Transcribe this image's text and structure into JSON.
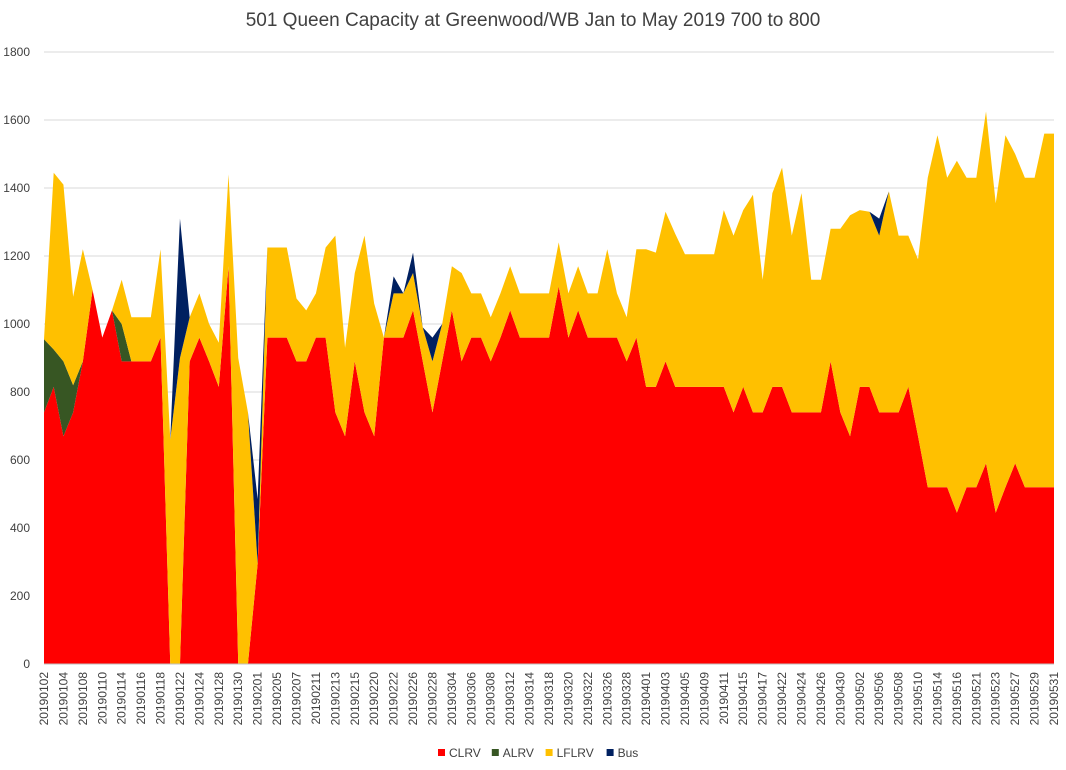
{
  "chart_data": {
    "type": "area",
    "stacked": true,
    "title": "501 Queen Capacity at Greenwood/WB Jan to May 2019 700 to 800",
    "xlabel": "",
    "ylabel": "",
    "ylim": [
      0,
      1800
    ],
    "yticks": [
      0,
      200,
      400,
      600,
      800,
      1000,
      1200,
      1400,
      1600,
      1800
    ],
    "grid": true,
    "legend": "bottom-center",
    "x": [
      "20190102",
      "20190103",
      "20190104",
      "20190107",
      "20190108",
      "20190109",
      "20190110",
      "20190111",
      "20190114",
      "20190115",
      "20190116",
      "20190117",
      "20190118",
      "20190121",
      "20190122",
      "20190123",
      "20190124",
      "20190125",
      "20190128",
      "20190129",
      "20190130",
      "20190131",
      "20190201",
      "20190204",
      "20190205",
      "20190206",
      "20190207",
      "20190208",
      "20190211",
      "20190212",
      "20190213",
      "20190214",
      "20190215",
      "20190219",
      "20190220",
      "20190221",
      "20190222",
      "20190225",
      "20190226",
      "20190227",
      "20190228",
      "20190301",
      "20190304",
      "20190305",
      "20190306",
      "20190307",
      "20190308",
      "20190311",
      "20190312",
      "20190313",
      "20190314",
      "20190315",
      "20190318",
      "20190319",
      "20190320",
      "20190321",
      "20190322",
      "20190325",
      "20190326",
      "20190327",
      "20190328",
      "20190329",
      "20190401",
      "20190402",
      "20190403",
      "20190404",
      "20190405",
      "20190408",
      "20190409",
      "20190410",
      "20190411",
      "20190412",
      "20190415",
      "20190416",
      "20190417",
      "20190418",
      "20190422",
      "20190423",
      "20190424",
      "20190425",
      "20190426",
      "20190429",
      "20190430",
      "20190501",
      "20190502",
      "20190503",
      "20190506",
      "20190507",
      "20190508",
      "20190509",
      "20190510",
      "20190513",
      "20190514",
      "20190515",
      "20190516",
      "20190517",
      "20190521",
      "20190522",
      "20190523",
      "20190524",
      "20190527",
      "20190528",
      "20190529",
      "20190530",
      "20190531"
    ],
    "xtick_labels": [
      "20190102",
      "20190104",
      "20190108",
      "20190110",
      "20190114",
      "20190116",
      "20190118",
      "20190122",
      "20190124",
      "20190128",
      "20190130",
      "20190201",
      "20190205",
      "20190207",
      "20190211",
      "20190213",
      "20190215",
      "20190220",
      "20190222",
      "20190226",
      "20190228",
      "20190304",
      "20190306",
      "20190308",
      "20190312",
      "20190314",
      "20190318",
      "20190320",
      "20190322",
      "20190326",
      "20190328",
      "20190401",
      "20190403",
      "20190405",
      "20190409",
      "20190411",
      "20190415",
      "20190417",
      "20190422",
      "20190424",
      "20190426",
      "20190430",
      "20190502",
      "20190506",
      "20190508",
      "20190510",
      "20190514",
      "20190516",
      "20190521",
      "20190523",
      "20190527",
      "20190529",
      "20190531"
    ],
    "series": [
      {
        "name": "CLRV",
        "color": "#ff0000",
        "values": [
          740,
          815,
          670,
          740,
          890,
          1100,
          960,
          1040,
          890,
          890,
          890,
          890,
          960,
          0,
          0,
          890,
          960,
          890,
          815,
          1170,
          0,
          0,
          295,
          960,
          960,
          960,
          890,
          890,
          960,
          960,
          740,
          670,
          890,
          740,
          670,
          960,
          960,
          960,
          1040,
          890,
          740,
          890,
          1040,
          890,
          960,
          960,
          890,
          960,
          1040,
          960,
          960,
          960,
          960,
          1110,
          960,
          1040,
          960,
          960,
          960,
          960,
          890,
          960,
          815,
          815,
          890,
          815,
          815,
          815,
          815,
          815,
          815,
          740,
          815,
          740,
          740,
          815,
          815,
          740,
          740,
          740,
          740,
          890,
          740,
          670,
          815,
          815,
          740,
          740,
          740,
          815,
          670,
          520,
          520,
          520,
          445,
          520,
          520,
          590,
          445,
          520,
          590,
          520,
          520,
          520,
          520
        ]
      },
      {
        "name": "ALRV",
        "color": "#375623",
        "values": [
          215,
          110,
          220,
          80,
          0,
          0,
          0,
          0,
          110,
          0,
          0,
          0,
          0,
          0,
          0,
          0,
          0,
          0,
          0,
          0,
          0,
          0,
          0,
          0,
          0,
          0,
          0,
          0,
          0,
          0,
          0,
          0,
          0,
          0,
          0,
          0,
          0,
          0,
          0,
          0,
          0,
          0,
          0,
          0,
          0,
          0,
          0,
          0,
          0,
          0,
          0,
          0,
          0,
          0,
          0,
          0,
          0,
          0,
          0,
          0,
          0,
          0,
          0,
          0,
          0,
          0,
          0,
          0,
          0,
          0,
          0,
          0,
          0,
          0,
          0,
          0,
          0,
          0,
          0,
          0,
          0,
          0,
          0,
          0,
          0,
          0,
          0,
          0,
          0,
          0,
          0,
          0,
          0,
          0,
          0,
          0,
          0,
          0,
          0,
          0,
          0,
          0,
          0,
          0,
          0
        ]
      },
      {
        "name": "LFLRV",
        "color": "#ffc000",
        "values": [
          0,
          520,
          520,
          260,
          330,
          0,
          0,
          0,
          130,
          130,
          130,
          130,
          260,
          660,
          900,
          130,
          130,
          110,
          130,
          270,
          900,
          740,
          0,
          265,
          265,
          265,
          185,
          150,
          130,
          265,
          520,
          260,
          260,
          520,
          390,
          0,
          130,
          130,
          110,
          100,
          150,
          110,
          130,
          260,
          130,
          130,
          130,
          130,
          130,
          130,
          130,
          130,
          130,
          130,
          130,
          130,
          130,
          130,
          260,
          130,
          130,
          260,
          405,
          395,
          440,
          450,
          390,
          390,
          390,
          390,
          520,
          520,
          520,
          640,
          390,
          570,
          645,
          520,
          645,
          390,
          390,
          390,
          540,
          650,
          520,
          515,
          520,
          650,
          520,
          445,
          520,
          910,
          1035,
          910,
          1035,
          910,
          910,
          1035,
          910,
          1035,
          910,
          910,
          910,
          1040,
          1040
        ]
      },
      {
        "name": "Bus",
        "color": "#002060",
        "values": [
          0,
          0,
          0,
          0,
          0,
          0,
          0,
          0,
          0,
          0,
          0,
          0,
          0,
          0,
          410,
          0,
          0,
          0,
          0,
          0,
          0,
          0,
          190,
          0,
          0,
          0,
          0,
          0,
          0,
          0,
          0,
          0,
          0,
          0,
          0,
          0,
          50,
          0,
          60,
          0,
          70,
          0,
          0,
          0,
          0,
          0,
          0,
          0,
          0,
          0,
          0,
          0,
          0,
          0,
          0,
          0,
          0,
          0,
          0,
          0,
          0,
          0,
          0,
          0,
          0,
          0,
          0,
          0,
          0,
          0,
          0,
          0,
          0,
          0,
          0,
          0,
          0,
          0,
          0,
          0,
          0,
          0,
          0,
          0,
          0,
          0,
          50,
          0,
          0,
          0,
          0,
          0,
          0,
          0,
          0,
          0,
          0,
          0,
          0,
          0,
          0,
          0,
          0,
          0,
          0
        ]
      }
    ]
  }
}
